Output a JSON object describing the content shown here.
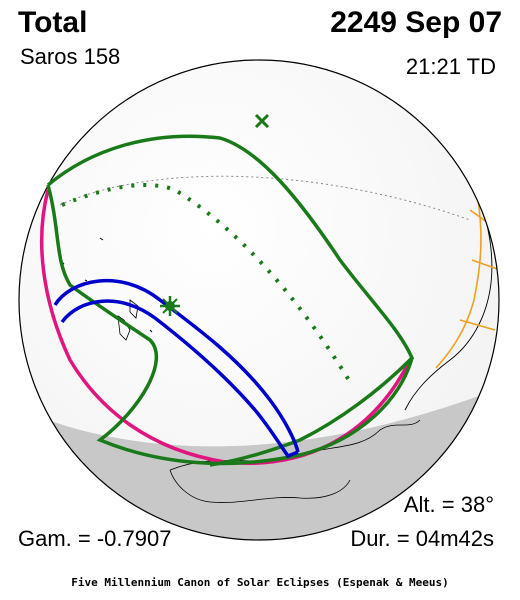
{
  "header": {
    "eclipse_type": "Total",
    "saros": "Saros 158",
    "date": "2249 Sep 07",
    "time": "21:21 TD"
  },
  "stats": {
    "altitude": "Alt. = 38°",
    "gamma": "Gam. = -0.7907",
    "duration": "Dur. = 04m42s"
  },
  "footer": {
    "credit": "Five Millennium Canon of Solar Eclipses (Espenak & Meeus)"
  },
  "colors": {
    "penumbral_limits": "#1a7a1a",
    "umbral_path": "#0000cc",
    "sunrise_sunset_curve": "#e0157f",
    "political_borders": "#f0a020",
    "night_shading": "#c8c8c8",
    "greatest_eclipse_marker": "#1a7a1a",
    "subsolar_marker": "#1a7a1a"
  },
  "map_markers": {
    "greatest_eclipse": "star-icon",
    "subsolar_point": "x-icon"
  }
}
